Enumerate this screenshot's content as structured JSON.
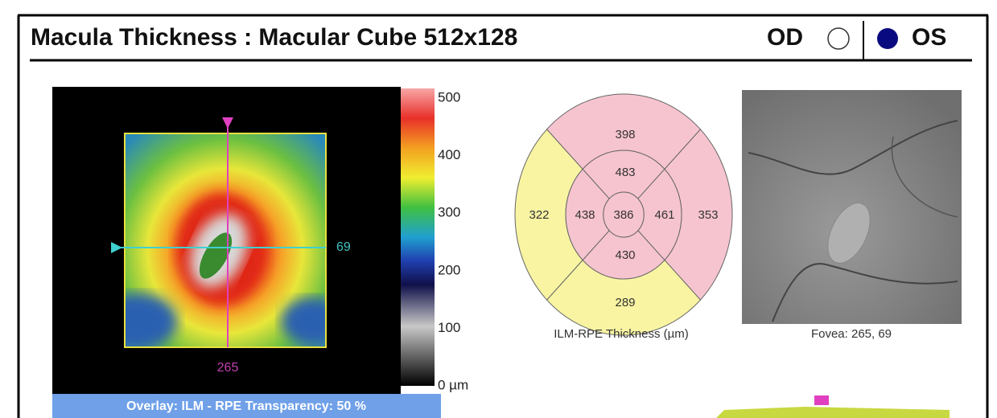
{
  "header": {
    "title": "Macula Thickness : Macular Cube 512x128",
    "eye_left": "OD",
    "eye_right": "OS"
  },
  "thickness_map": {
    "colorbar_labels": [
      "500",
      "400",
      "300",
      "200",
      "100",
      "0 µm"
    ],
    "horizontal_marker": "69",
    "vertical_marker": "265",
    "overlay_caption": "Overlay: ILM - RPE  Transparency: 50 %"
  },
  "etdrs_grid": {
    "outer_superior": 398,
    "inner_superior": 483,
    "outer_temporal": 322,
    "inner_temporal": 438,
    "central": 386,
    "inner_nasal": 461,
    "outer_nasal": 353,
    "inner_inferior": 430,
    "outer_inferior": 289,
    "caption": "ILM-RPE Thickness (µm)"
  },
  "fundus": {
    "caption": "Fovea: 265, 69"
  }
}
